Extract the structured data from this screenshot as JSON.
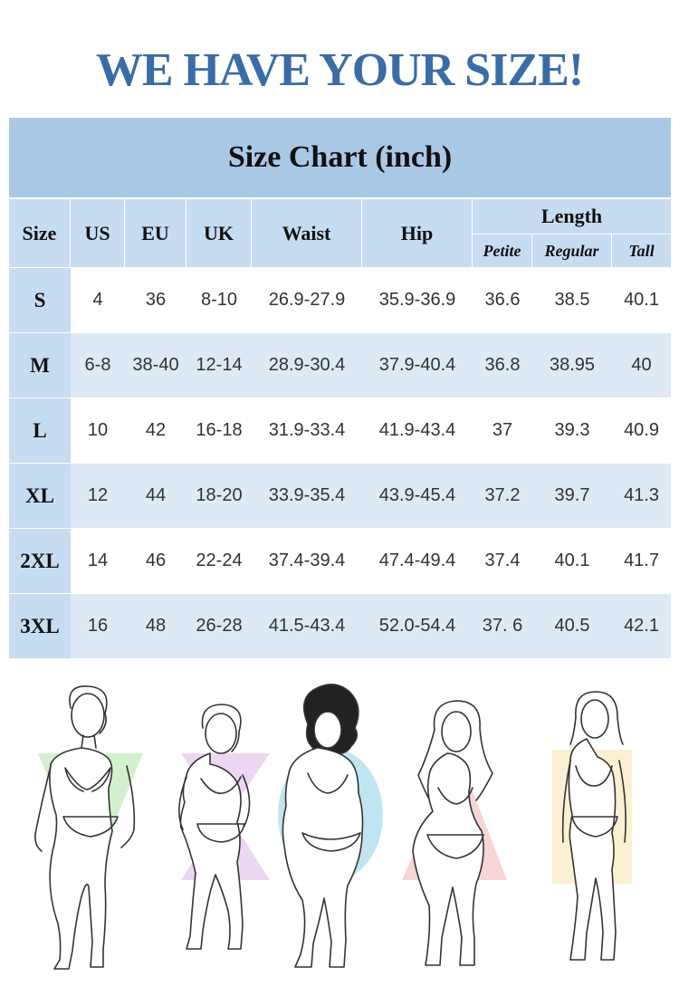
{
  "headline": "WE HAVE YOUR SIZE!",
  "table": {
    "title": "Size Chart  (inch)",
    "headers": {
      "size": "Size",
      "us": "US",
      "eu": "EU",
      "uk": "UK",
      "waist": "Waist",
      "hip": "Hip",
      "length": "Length",
      "petite": "Petite",
      "regular": "Regular",
      "tall": "Tall"
    },
    "rows": [
      {
        "size": "S",
        "us": "4",
        "eu": "36",
        "uk": "8-10",
        "waist": "26.9-27.9",
        "hip": "35.9-36.9",
        "petite": "36.6",
        "regular": "38.5",
        "tall": "40.1"
      },
      {
        "size": "M",
        "us": "6-8",
        "eu": "38-40",
        "uk": "12-14",
        "waist": "28.9-30.4",
        "hip": "37.9-40.4",
        "petite": "36.8",
        "regular": "38.95",
        "tall": "40"
      },
      {
        "size": "L",
        "us": "10",
        "eu": "42",
        "uk": "16-18",
        "waist": "31.9-33.4",
        "hip": "41.9-43.4",
        "petite": "37",
        "regular": "39.3",
        "tall": "40.9"
      },
      {
        "size": "XL",
        "us": "12",
        "eu": "44",
        "uk": "18-20",
        "waist": "33.9-35.4",
        "hip": "43.9-45.4",
        "petite": "37.2",
        "regular": "39.7",
        "tall": "41.3"
      },
      {
        "size": "2XL",
        "us": "14",
        "eu": "46",
        "uk": "22-24",
        "waist": "37.4-39.4",
        "hip": "47.4-49.4",
        "petite": "37.4",
        "regular": "40.1",
        "tall": "41.7"
      },
      {
        "size": "3XL",
        "us": "16",
        "eu": "48",
        "uk": "26-28",
        "waist": "41.5-43.4",
        "hip": "52.0-54.4",
        "petite": "37. 6",
        "regular": "40.5",
        "tall": "42.1"
      }
    ]
  },
  "colors": {
    "headline": "#3a6ca6",
    "header_bg": "#a9c8e6",
    "subheader_bg": "#c6dcf0",
    "stripe_bg": "#dde9f5",
    "shape_v": "#cdeec4",
    "shape_hourglass": "#ead2f0",
    "shape_oval": "#b9e2ef",
    "shape_triangle": "#f6d0d0",
    "shape_rectangle": "#fbefcf"
  },
  "body_shapes": [
    "inverted-triangle",
    "hourglass",
    "oval",
    "triangle",
    "rectangle"
  ]
}
